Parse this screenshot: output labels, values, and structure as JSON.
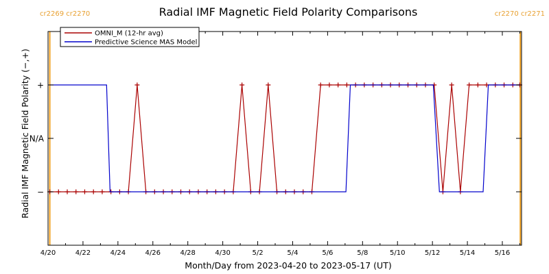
{
  "chart_data": {
    "type": "line",
    "title": "Radial IMF Magnetic Field Polarity Comparisons",
    "xlabel": "Month/Day from 2023-04-20 to 2023-05-17 (UT)",
    "ylabel": "Radial IMF Magnetic Field Polarity (−,+)",
    "xlim_days": [
      0,
      27.1
    ],
    "ylim": [
      -2,
      2
    ],
    "x_ticks": [
      {
        "day": 0,
        "label": "4/20"
      },
      {
        "day": 2,
        "label": "4/22"
      },
      {
        "day": 4,
        "label": "4/24"
      },
      {
        "day": 6,
        "label": "4/26"
      },
      {
        "day": 8,
        "label": "4/28"
      },
      {
        "day": 10,
        "label": "4/30"
      },
      {
        "day": 12,
        "label": "5/2"
      },
      {
        "day": 14,
        "label": "5/4"
      },
      {
        "day": 16,
        "label": "5/6"
      },
      {
        "day": 18,
        "label": "5/8"
      },
      {
        "day": 20,
        "label": "5/10"
      },
      {
        "day": 22,
        "label": "5/12"
      },
      {
        "day": 24,
        "label": "5/14"
      },
      {
        "day": 26,
        "label": "5/16"
      }
    ],
    "y_ticks": [
      {
        "value": 1,
        "label": "+"
      },
      {
        "value": 0,
        "label": "N/A"
      },
      {
        "value": -1,
        "label": "−"
      }
    ],
    "carrington_markers": [
      {
        "day": 0.1,
        "label": "cr2269 cr2270"
      },
      {
        "day": 27.03,
        "label": "cr2270 cr2271"
      }
    ],
    "legend_position": "top-left",
    "series": [
      {
        "name": "OMNI_M (12-hr avg)",
        "color": "#aa0000",
        "marker": "plus",
        "x": [
          0.1,
          0.6,
          1.1,
          1.6,
          2.1,
          2.6,
          3.1,
          3.6,
          4.1,
          4.6,
          5.1,
          5.6,
          6.1,
          6.6,
          7.1,
          7.6,
          8.1,
          8.6,
          9.1,
          9.6,
          10.1,
          10.6,
          11.1,
          11.6,
          12.1,
          12.6,
          13.1,
          13.6,
          14.1,
          14.6,
          15.1,
          15.6,
          16.1,
          16.6,
          17.1,
          17.6,
          18.1,
          18.6,
          19.1,
          19.6,
          20.1,
          20.6,
          21.1,
          21.6,
          22.1,
          22.6,
          23.1,
          23.6,
          24.1,
          24.6,
          25.1,
          25.6,
          26.1,
          26.6,
          27.0
        ],
        "y": [
          -1,
          -1,
          -1,
          -1,
          -1,
          -1,
          -1,
          -1,
          -1,
          -1,
          1,
          -1,
          -1,
          -1,
          -1,
          -1,
          -1,
          -1,
          -1,
          -1,
          -1,
          -1,
          1,
          -1,
          -1,
          1,
          -1,
          -1,
          -1,
          -1,
          -1,
          1,
          1,
          1,
          1,
          1,
          1,
          1,
          1,
          1,
          1,
          1,
          1,
          1,
          1,
          -1,
          1,
          -1,
          1,
          1,
          1,
          1,
          1,
          1,
          1
        ]
      },
      {
        "name": "Predictive Science MAS Model",
        "color": "#0000cc",
        "marker": "none",
        "x": [
          0.1,
          3.35,
          3.55,
          17.05,
          17.3,
          22.05,
          22.4,
          24.9,
          25.2,
          27.0
        ],
        "y": [
          1,
          1,
          -1,
          -1,
          1,
          1,
          -1,
          -1,
          1,
          1
        ]
      }
    ]
  }
}
